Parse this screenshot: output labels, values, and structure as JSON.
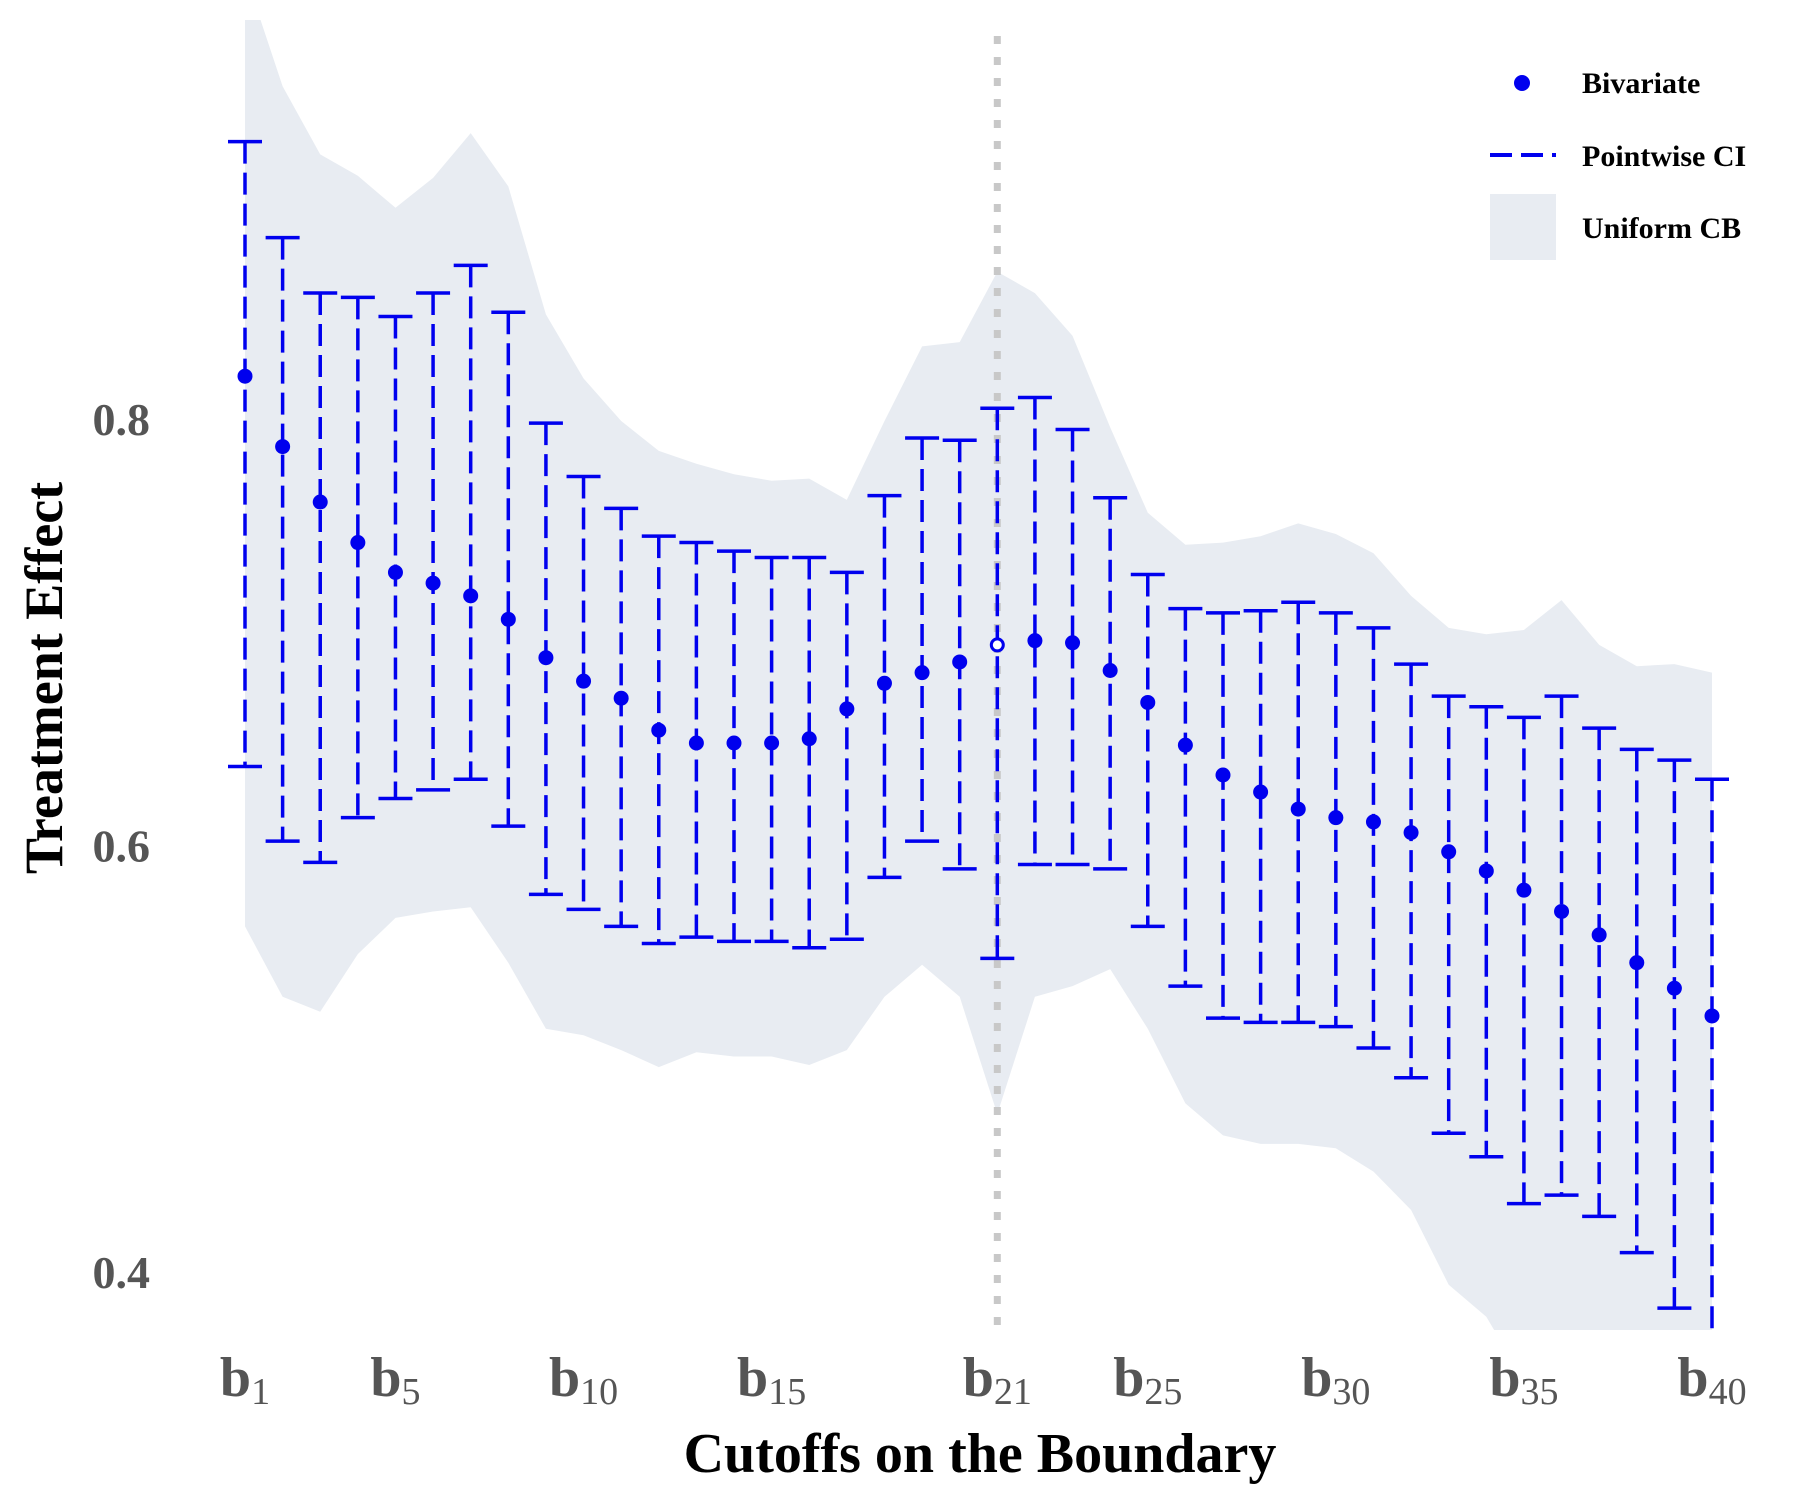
{
  "chart_data": {
    "type": "scatter",
    "xlabel": "Cutoffs on the Boundary",
    "ylabel": "Treatment Effect",
    "x": [
      1,
      2,
      3,
      4,
      5,
      6,
      7,
      8,
      9,
      10,
      11,
      12,
      13,
      14,
      15,
      16,
      17,
      18,
      19,
      20,
      21,
      22,
      23,
      24,
      25,
      26,
      27,
      28,
      29,
      30,
      31,
      32,
      33,
      34,
      35,
      36,
      37,
      38,
      39,
      40
    ],
    "x_ticks": [
      {
        "x": 1,
        "base": "b",
        "sub": "1"
      },
      {
        "x": 5,
        "base": "b",
        "sub": "5"
      },
      {
        "x": 10,
        "base": "b",
        "sub": "10"
      },
      {
        "x": 15,
        "base": "b",
        "sub": "15"
      },
      {
        "x": 21,
        "base": "b",
        "sub": "21"
      },
      {
        "x": 25,
        "base": "b",
        "sub": "25"
      },
      {
        "x": 30,
        "base": "b",
        "sub": "30"
      },
      {
        "x": 35,
        "base": "b",
        "sub": "35"
      },
      {
        "x": 40,
        "base": "b",
        "sub": "40"
      }
    ],
    "y_ticks": [
      "0.4",
      "0.6",
      "0.8"
    ],
    "ylim": [
      0.37,
      0.92
    ],
    "xlim": [
      0.5,
      40.5
    ],
    "vline_x": 21,
    "highlight_x": 21,
    "series": [
      {
        "name": "Bivariate",
        "kind": "point",
        "values": [
          0.821,
          0.788,
          0.762,
          0.743,
          0.729,
          0.724,
          0.718,
          0.707,
          0.689,
          0.678,
          0.67,
          0.655,
          0.649,
          0.649,
          0.649,
          0.651,
          0.665,
          0.677,
          0.682,
          0.687,
          0.695,
          0.697,
          0.696,
          0.683,
          0.668,
          0.648,
          0.634,
          0.626,
          0.618,
          0.614,
          0.612,
          0.607,
          0.598,
          0.589,
          0.58,
          0.57,
          0.559,
          0.546,
          0.534,
          0.521
        ]
      },
      {
        "name": "Pointwise CI",
        "kind": "errorbar",
        "lower": [
          0.638,
          0.603,
          0.593,
          0.614,
          0.623,
          0.627,
          0.632,
          0.61,
          0.578,
          0.571,
          0.563,
          0.555,
          0.558,
          0.556,
          0.556,
          0.553,
          0.557,
          0.586,
          0.603,
          0.59,
          0.548,
          0.592,
          0.592,
          0.59,
          0.563,
          0.535,
          0.52,
          0.518,
          0.518,
          0.516,
          0.506,
          0.492,
          0.466,
          0.455,
          0.433,
          0.437,
          0.427,
          0.41,
          0.384,
          0.37
        ],
        "upper": [
          0.931,
          0.886,
          0.86,
          0.858,
          0.849,
          0.86,
          0.873,
          0.851,
          0.799,
          0.774,
          0.759,
          0.746,
          0.743,
          0.739,
          0.736,
          0.736,
          0.729,
          0.765,
          0.792,
          0.791,
          0.806,
          0.811,
          0.796,
          0.764,
          0.728,
          0.712,
          0.71,
          0.711,
          0.715,
          0.71,
          0.703,
          0.686,
          0.671,
          0.666,
          0.661,
          0.671,
          0.656,
          0.646,
          0.641,
          0.632
        ]
      },
      {
        "name": "Uniform CB",
        "kind": "band",
        "lower": [
          0.563,
          0.53,
          0.523,
          0.55,
          0.567,
          0.57,
          0.572,
          0.546,
          0.515,
          0.512,
          0.505,
          0.497,
          0.504,
          0.502,
          0.502,
          0.498,
          0.505,
          0.53,
          0.545,
          0.53,
          0.475,
          0.53,
          0.535,
          0.543,
          0.515,
          0.48,
          0.465,
          0.461,
          0.461,
          0.459,
          0.448,
          0.43,
          0.395,
          0.38,
          0.35,
          0.345,
          0.325,
          0.31,
          0.29,
          0.275
        ],
        "upper": [
          1.01,
          0.957,
          0.925,
          0.915,
          0.9,
          0.914,
          0.935,
          0.91,
          0.85,
          0.82,
          0.8,
          0.786,
          0.78,
          0.775,
          0.772,
          0.773,
          0.763,
          0.8,
          0.835,
          0.837,
          0.87,
          0.86,
          0.84,
          0.797,
          0.757,
          0.742,
          0.743,
          0.746,
          0.752,
          0.747,
          0.738,
          0.718,
          0.703,
          0.7,
          0.702,
          0.716,
          0.695,
          0.685,
          0.686,
          0.682
        ]
      }
    ],
    "legend_position": "top-right",
    "colors": {
      "point": "#0000ee",
      "band": "#e8ecf2",
      "vline": "#c8c8c8",
      "tick": "#555555"
    }
  }
}
